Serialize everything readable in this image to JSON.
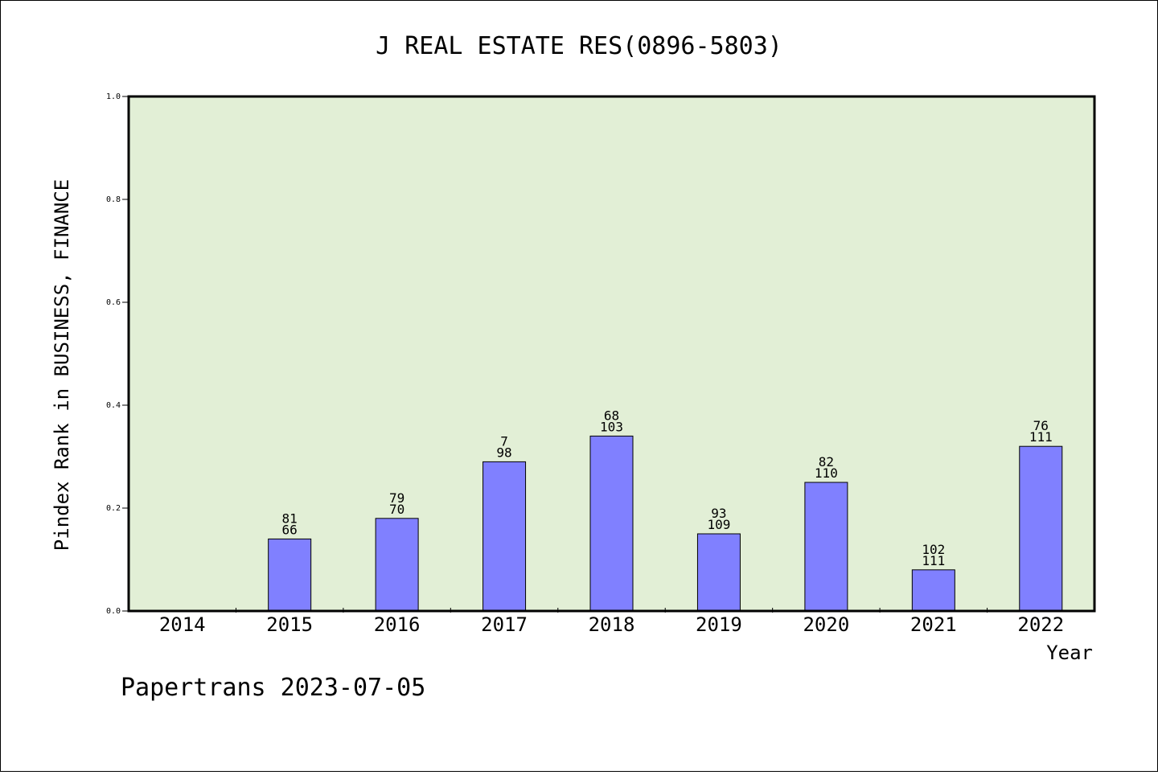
{
  "chart_data": {
    "type": "bar",
    "title": "J REAL ESTATE RES(0896-5803)",
    "xlabel": "Year",
    "ylabel": "Pindex Rank in BUSINESS, FINANCE",
    "ylim": [
      0,
      1.0
    ],
    "yticks": [
      "0.0",
      "0.2",
      "0.4",
      "0.6",
      "0.8",
      "1.0"
    ],
    "categories": [
      "2014",
      "2015",
      "2016",
      "2017",
      "2018",
      "2019",
      "2020",
      "2021",
      "2022"
    ],
    "values": [
      0,
      0.14,
      0.18,
      0.29,
      0.34,
      0.15,
      0.25,
      0.08,
      0.32
    ],
    "label_top": [
      "",
      "81",
      "79",
      "7",
      "68",
      "93",
      "82",
      "102",
      "76"
    ],
    "label_bottom": [
      "",
      "66",
      "70",
      "98",
      "103",
      "109",
      "110",
      "111",
      "111"
    ],
    "grid": false,
    "plot_bg": "#e2efd6",
    "bar_color": "#8080ff"
  },
  "footer": "Papertrans 2023-07-05"
}
